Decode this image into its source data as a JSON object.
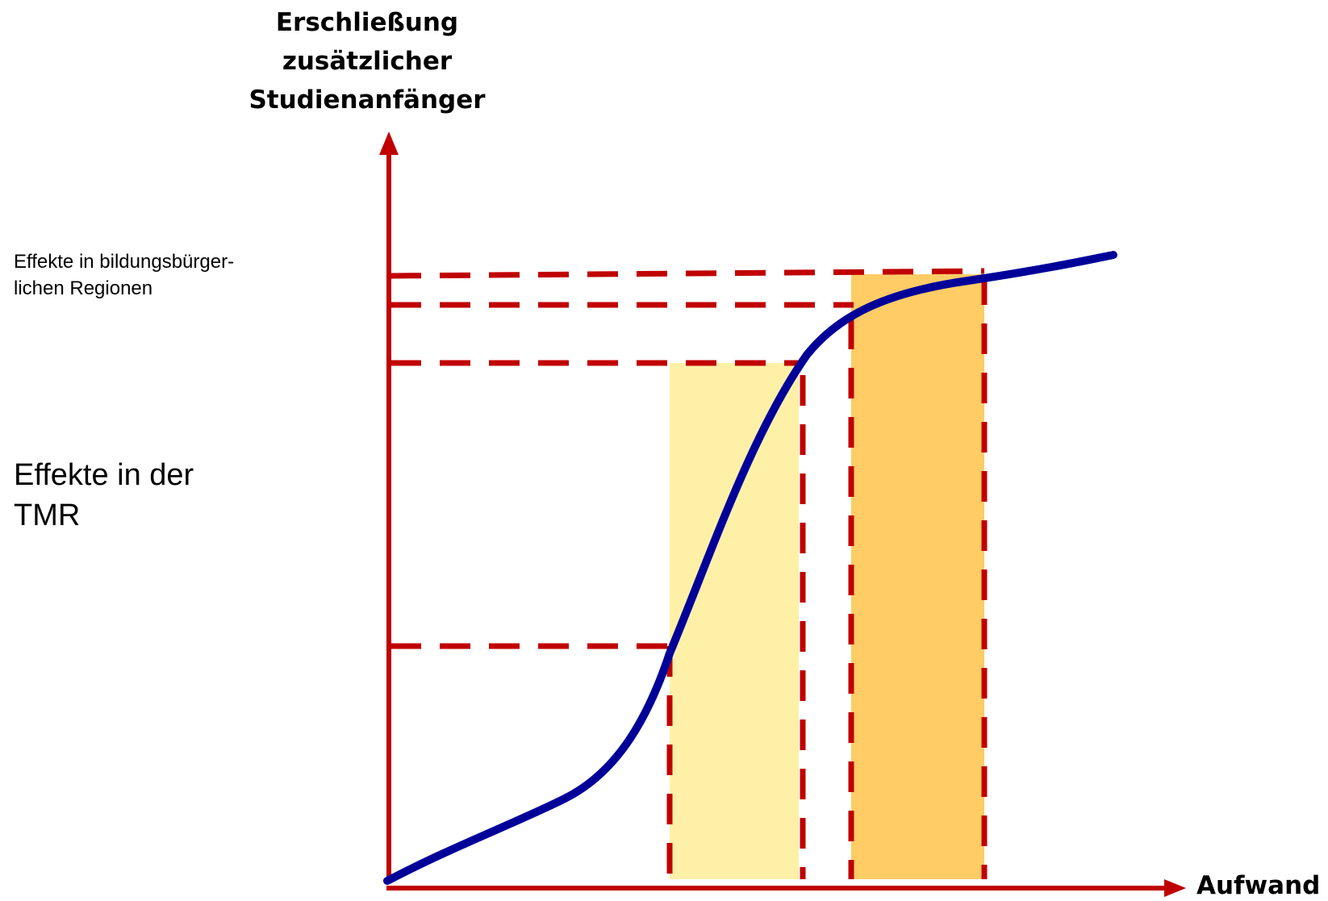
{
  "y_axis": {
    "title_lines": [
      "Erschließung",
      "zusätzlicher",
      "Studienanfänger"
    ]
  },
  "x_axis": {
    "title": "Aufwand"
  },
  "annotations": {
    "upper": [
      "Effekte in bildungsbürger-",
      "lichen Regionen"
    ],
    "lower": [
      "Effekte in der",
      "TMR"
    ]
  },
  "colors": {
    "axis": "#c00000",
    "dash": "#c00000",
    "curve": "#000099",
    "band_light": "#fff0a8",
    "band_dark": "#ffcc66"
  }
}
